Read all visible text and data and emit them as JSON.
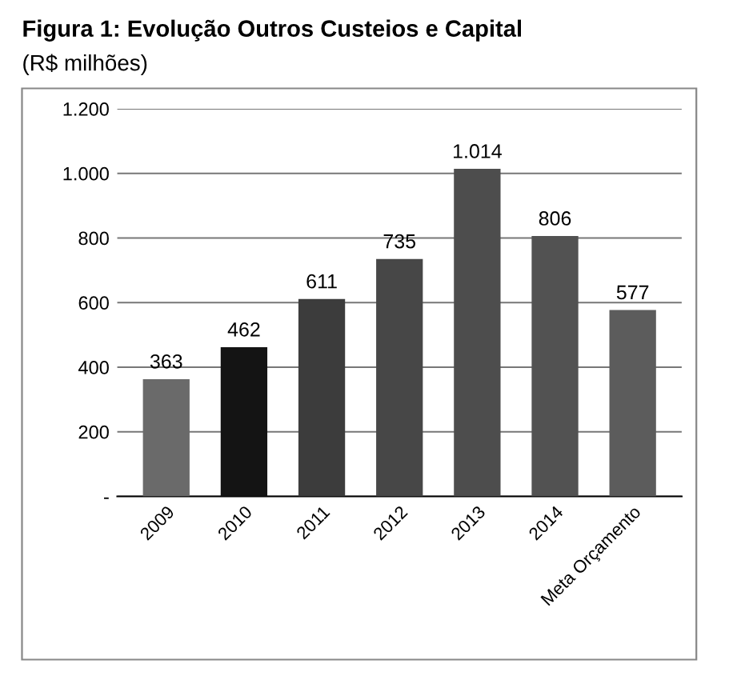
{
  "chart_data": {
    "type": "bar",
    "title": "Figura 1: Evolução Outros Custeios e Capital",
    "subtitle": "(R$ milhões)",
    "categories": [
      "2009",
      "2010",
      "2011",
      "2012",
      "2013",
      "2014",
      "Meta Orçamento"
    ],
    "values": [
      363,
      462,
      611,
      735,
      1014,
      806,
      577
    ],
    "value_labels": [
      "363",
      "462",
      "611",
      "735",
      "1.014",
      "806",
      "577"
    ],
    "colors": [
      "#6a6a6a",
      "#141414",
      "#3c3c3c",
      "#474747",
      "#4d4d4d",
      "#525252",
      "#5c5c5c"
    ],
    "ylim": [
      0,
      1200
    ],
    "yticks": [
      {
        "value": 0,
        "label": "-"
      },
      200,
      400,
      600,
      800,
      {
        "value": 1000,
        "label": "1.000"
      },
      {
        "value": 1200,
        "label": "1.200"
      }
    ],
    "grid": "y"
  }
}
